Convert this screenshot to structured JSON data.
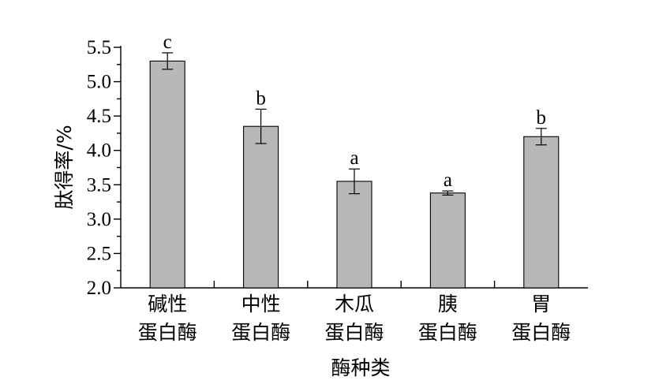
{
  "chart_data": {
    "type": "bar",
    "categories": [
      [
        "碱性",
        "蛋白酶"
      ],
      [
        "中性",
        "蛋白酶"
      ],
      [
        "木瓜",
        "蛋白酶"
      ],
      [
        "胰",
        "蛋白酶"
      ],
      [
        "胃",
        "蛋白酶"
      ]
    ],
    "values": [
      5.3,
      4.35,
      3.55,
      3.38,
      4.2
    ],
    "errors": [
      0.12,
      0.25,
      0.18,
      0.03,
      0.12
    ],
    "significance": [
      "c",
      "b",
      "a",
      "a",
      "b"
    ],
    "xlabel": "酶种类",
    "ylabel": "肽得率/%",
    "ylim": [
      2.0,
      5.5
    ],
    "yticks": [
      "2.0",
      "2.5",
      "3.0",
      "3.5",
      "4.0",
      "4.5",
      "5.0",
      "5.5"
    ],
    "grid": false,
    "colors": {
      "bar": "#b8b8b8",
      "outline": "#000000"
    }
  }
}
